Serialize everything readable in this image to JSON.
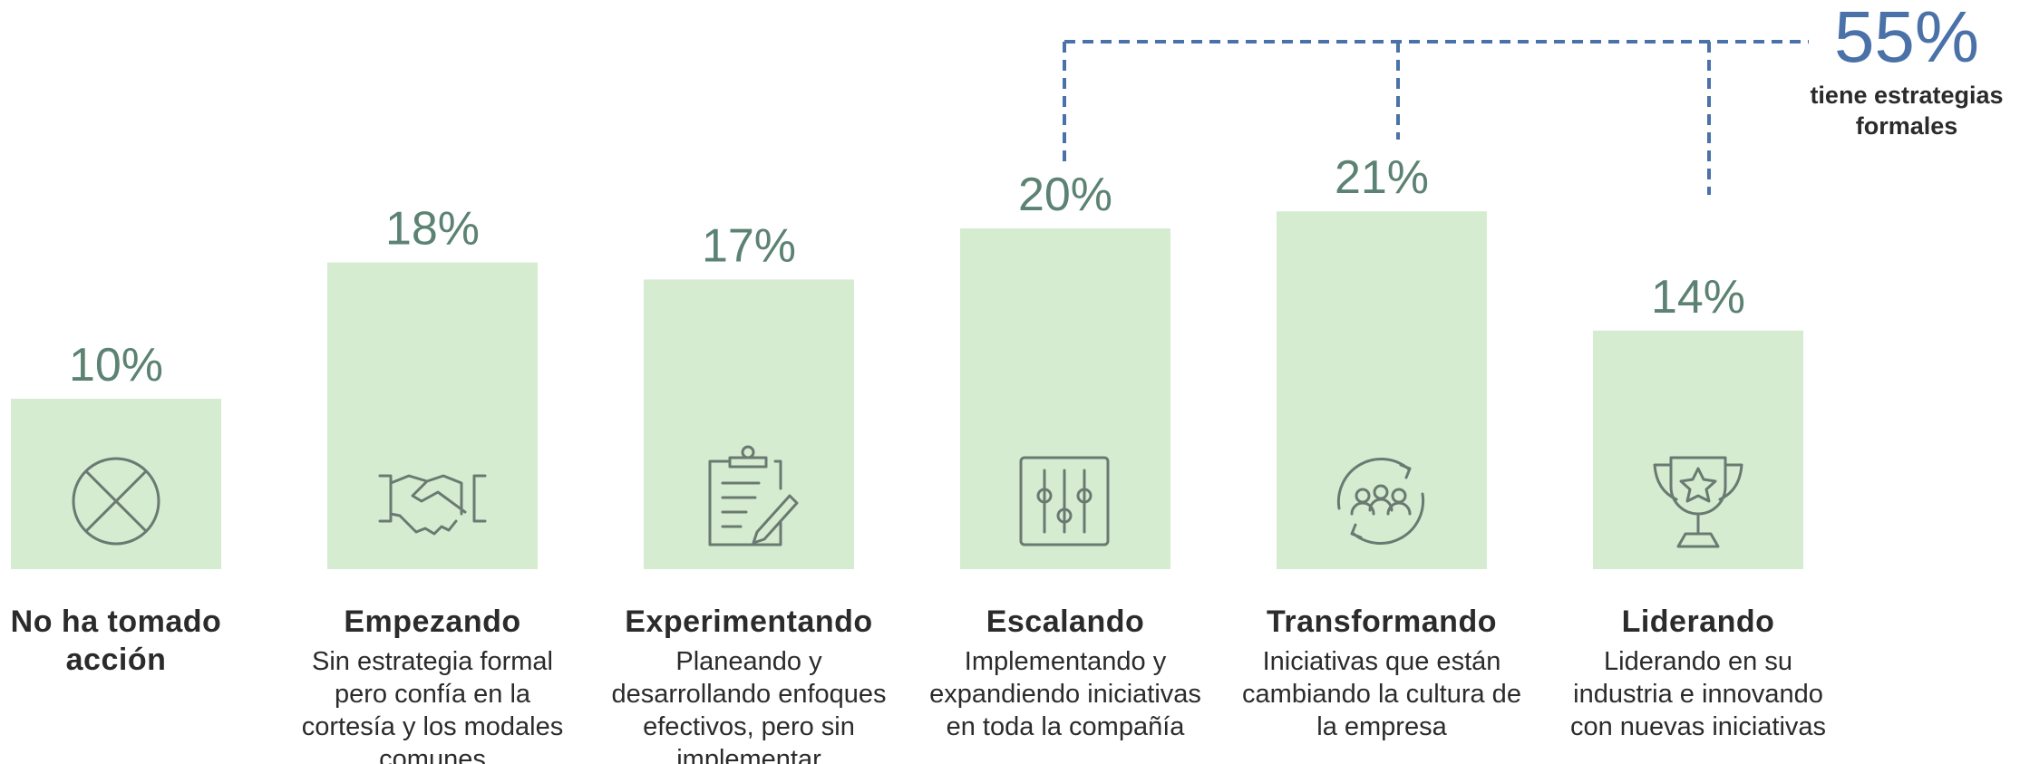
{
  "chart_data": {
    "type": "bar",
    "categories": [
      "No ha tomado acción",
      "Empezando",
      "Experimentando",
      "Escalando",
      "Transformando",
      "Liderando"
    ],
    "descriptions": [
      "",
      "Sin estrategia formal pero confía en la cortesía y los modales comunes",
      "Planeando y desarrollando enfoques efectivos, pero sin implementar",
      "Implementando y expandiendo iniciativas en toda la compañía",
      "Iniciativas que están cambiando la cultura de la empresa",
      "Liderando en su industria e innovando con nuevas iniciativas"
    ],
    "values": [
      10,
      18,
      17,
      20,
      21,
      14
    ],
    "value_labels": [
      "10%",
      "18%",
      "17%",
      "20%",
      "21%",
      "14%"
    ],
    "color": "#d5ecd0",
    "annotation": {
      "label": "55%",
      "text": "tiene estrategias formales"
    }
  }
}
